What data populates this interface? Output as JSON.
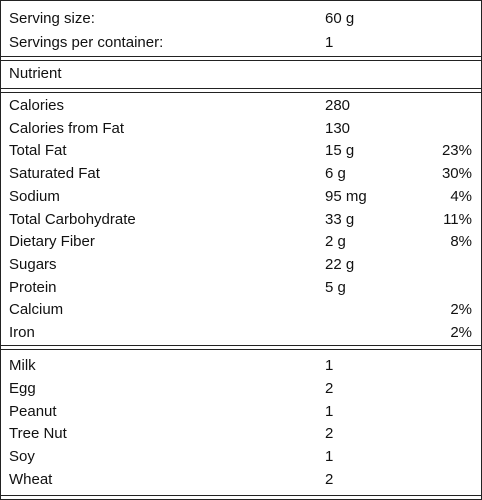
{
  "serving": {
    "rows": [
      [
        "Serving size:",
        "60 g"
      ],
      [
        "Servings per container:",
        "1"
      ]
    ]
  },
  "header": {
    "title": "Nutrient"
  },
  "nutrients": {
    "rows": [
      [
        "Calories",
        "280"
      ],
      [
        "Calories from Fat",
        "130"
      ],
      [
        "Total Fat",
        "15 g",
        "23%"
      ],
      [
        "Saturated Fat",
        "6 g",
        "30%"
      ],
      [
        "Sodium",
        "95 mg",
        "4%"
      ],
      [
        "Total Carbohydrate",
        "33 g",
        "11%"
      ],
      [
        "Dietary Fiber",
        "2 g",
        "8%"
      ],
      [
        "Sugars",
        "22 g"
      ],
      [
        "Protein",
        "5 g"
      ],
      [
        "Calcium",
        null,
        "2%"
      ],
      [
        "Iron",
        null,
        "2%"
      ]
    ]
  },
  "allergens": {
    "rows": [
      [
        "Milk",
        "1"
      ],
      [
        "Egg",
        "2"
      ],
      [
        "Peanut",
        "1"
      ],
      [
        "Tree Nut",
        "2"
      ],
      [
        "Soy",
        "1"
      ],
      [
        "Wheat",
        "2"
      ]
    ]
  }
}
